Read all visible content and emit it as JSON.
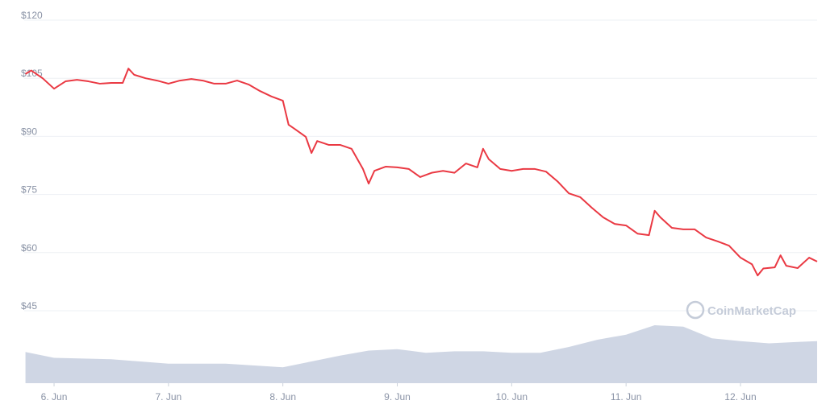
{
  "chart_data": {
    "type": "line",
    "x": [
      5.75,
      5.8,
      5.9,
      6.0,
      6.1,
      6.2,
      6.3,
      6.4,
      6.5,
      6.6,
      6.65,
      6.7,
      6.8,
      6.9,
      7.0,
      7.1,
      7.2,
      7.3,
      7.4,
      7.5,
      7.6,
      7.7,
      7.8,
      7.9,
      8.0,
      8.05,
      8.1,
      8.2,
      8.25,
      8.3,
      8.4,
      8.5,
      8.6,
      8.7,
      8.75,
      8.8,
      8.9,
      9.0,
      9.1,
      9.2,
      9.3,
      9.4,
      9.5,
      9.6,
      9.7,
      9.75,
      9.8,
      9.9,
      10.0,
      10.1,
      10.2,
      10.3,
      10.4,
      10.5,
      10.6,
      10.7,
      10.8,
      10.9,
      11.0,
      11.1,
      11.2,
      11.25,
      11.3,
      11.4,
      11.5,
      11.6,
      11.7,
      11.8,
      11.9,
      12.0,
      12.1,
      12.15,
      12.2,
      12.3,
      12.35,
      12.4,
      12.5,
      12.6,
      12.67
    ],
    "series": [
      {
        "color": "#ea3943",
        "values": [
          106.1,
          107,
          105,
          102.3,
          104.2,
          104.6,
          104.2,
          103.6,
          103.8,
          103.8,
          107.5,
          105.9,
          105,
          104.4,
          103.6,
          104.4,
          104.8,
          104.4,
          103.6,
          103.6,
          104.4,
          103.4,
          101.7,
          100.3,
          99.2,
          93,
          92,
          89.9,
          85.7,
          88.8,
          87.8,
          87.8,
          86.8,
          81.6,
          77.8,
          81.1,
          82.2,
          82,
          81.6,
          79.5,
          80.6,
          81.1,
          80.6,
          83,
          82,
          86.8,
          84.1,
          81.6,
          81.1,
          81.6,
          81.6,
          80.9,
          78.4,
          75.3,
          74.3,
          71.6,
          69.1,
          67.4,
          67,
          64.9,
          64.5,
          70.8,
          69.1,
          66.4,
          66,
          66,
          63.9,
          62.9,
          61.8,
          58.7,
          57,
          54.1,
          55.9,
          56.2,
          59.3,
          56.6,
          56,
          58.7,
          57.7
        ]
      }
    ],
    "volume": {
      "color": "#cfd6e4",
      "x": [
        5.75,
        6.0,
        6.5,
        7.0,
        7.5,
        8.0,
        8.25,
        8.5,
        8.75,
        9.0,
        9.25,
        9.5,
        9.75,
        10.0,
        10.25,
        10.5,
        10.75,
        11.0,
        11.25,
        11.5,
        11.75,
        12.0,
        12.25,
        12.5,
        12.67
      ],
      "values": [
        43,
        35,
        33,
        27,
        27,
        22,
        30,
        38,
        45,
        47,
        42,
        44,
        44,
        42,
        42,
        50,
        60,
        67,
        80,
        78,
        62,
        58,
        55,
        57,
        58
      ]
    },
    "y2lim": [
      0,
      100
    ],
    "xlim": [
      5.753,
      12.67
    ],
    "xticks": [
      {
        "value": 6,
        "label": "6. Jun"
      },
      {
        "value": 7,
        "label": "7. Jun"
      },
      {
        "value": 8,
        "label": "8. Jun"
      },
      {
        "value": 9,
        "label": "9. Jun"
      },
      {
        "value": 10,
        "label": "10. Jun"
      },
      {
        "value": 11,
        "label": "11. Jun"
      },
      {
        "value": 12,
        "label": "12. Jun"
      }
    ],
    "ylim": [
      26.3,
      120
    ],
    "yticks": [
      {
        "value": 45,
        "label": "$45"
      },
      {
        "value": 60,
        "label": "$60"
      },
      {
        "value": 75,
        "label": "$75"
      },
      {
        "value": 90,
        "label": "$90"
      },
      {
        "value": 105,
        "label": "$105"
      },
      {
        "value": 120,
        "label": "$120"
      }
    ],
    "grid": true,
    "watermark": "CoinMarketCap"
  }
}
